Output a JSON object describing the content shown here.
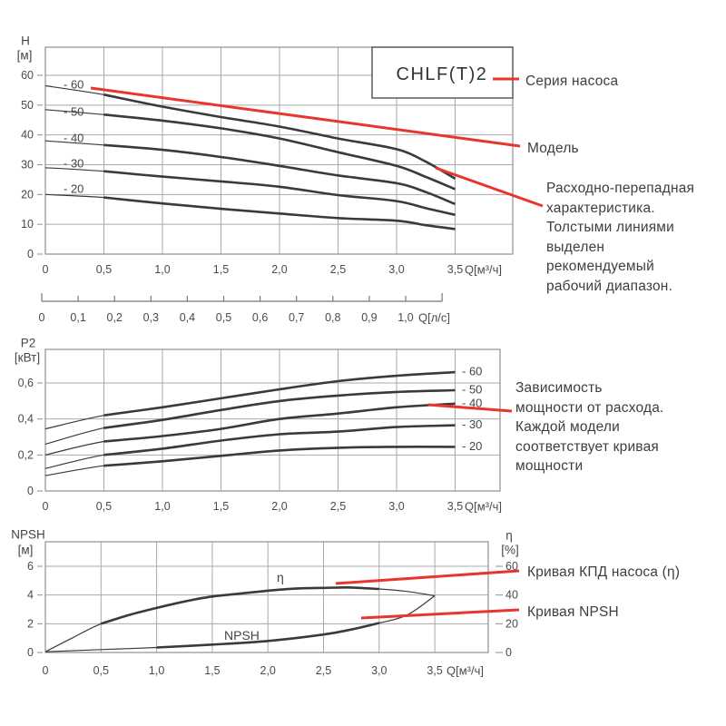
{
  "title_box": {
    "label": "CHLF(T)2"
  },
  "annotations": {
    "series": "Серия насоса",
    "model": "Модель",
    "flow_head": "Расходно-перепадная\nхарактеристика.\nТолстыми линиями\nвыделен\nрекомендуемый\nрабочий диапазон.",
    "power": "Зависимость\nмощности от расхода.\nКаждой модели\nсоответствует кривая\nмощности",
    "efficiency": "Кривая КПД насоса (η)",
    "npsh": "Кривая NPSH"
  },
  "colors": {
    "accent_red": "#e8352e",
    "curve": "#3a3a3a",
    "grid": "#a9a9a9",
    "frame": "#8f8f8f",
    "text": "#3e3e3e"
  },
  "chart_data": [
    {
      "id": "head_flow",
      "type": "line",
      "title": "Расходно-перепадная характеристика CHLF(T)2",
      "ylabel": "H",
      "ylabel_unit": "[м]",
      "xlabel": "Q[м³/ч]",
      "xlim": [
        0,
        4.0
      ],
      "ylim": [
        0,
        69.5
      ],
      "grid": true,
      "xtick_values": [
        0,
        0.5,
        1.0,
        1.5,
        2.0,
        2.5,
        3.0,
        3.5
      ],
      "xtick_labels": [
        "0",
        "0,5",
        "1,0",
        "1,5",
        "2,0",
        "2,5",
        "3,0",
        "3,5"
      ],
      "ytick_values": [
        0,
        10,
        20,
        30,
        40,
        50,
        60
      ],
      "ytick_labels": [
        "0",
        "10",
        "20",
        "30",
        "40",
        "50",
        "60"
      ],
      "x": [
        0,
        0.5,
        1.0,
        1.5,
        2.0,
        2.5,
        3.0,
        3.25,
        3.5
      ],
      "recommended_range": [
        0.5,
        3.5
      ],
      "series": [
        {
          "name": "-60",
          "label": "- 60",
          "values": [
            56.5,
            53.5,
            49.5,
            46.0,
            42.8,
            38.8,
            35.2,
            31.0,
            25.3
          ]
        },
        {
          "name": "-50",
          "label": "- 50",
          "values": [
            48.5,
            46.8,
            44.8,
            42.2,
            38.8,
            34.2,
            29.6,
            25.9,
            21.8
          ]
        },
        {
          "name": "-40",
          "label": "- 40",
          "values": [
            38.0,
            36.6,
            35.0,
            32.6,
            29.6,
            26.4,
            23.8,
            20.8,
            16.8
          ]
        },
        {
          "name": "-30",
          "label": "- 30",
          "values": [
            29.0,
            27.8,
            26.0,
            24.4,
            22.6,
            19.8,
            17.8,
            15.4,
            13.2
          ]
        },
        {
          "name": "-20",
          "label": "- 20",
          "values": [
            20.0,
            19.0,
            17.0,
            15.2,
            13.6,
            12.1,
            11.2,
            9.7,
            8.4
          ]
        }
      ]
    },
    {
      "id": "flow_ruler_ls",
      "type": "axis",
      "xlabel": "Q[л/с]",
      "xtick_labels": [
        "0",
        "0,1",
        "0,2",
        "0,3",
        "0,4",
        "0,5",
        "0,6",
        "0,7",
        "0,8",
        "0,9",
        "1,0"
      ]
    },
    {
      "id": "power",
      "type": "line",
      "title": "Зависимость мощности от расхода",
      "ylabel": "P2",
      "ylabel_unit": "[кВт]",
      "xlabel": "Q[м³/ч]",
      "xlim": [
        0,
        3.9
      ],
      "ylim": [
        0,
        0.79
      ],
      "grid": true,
      "xtick_values": [
        0,
        0.5,
        1.0,
        1.5,
        2.0,
        2.5,
        3.0,
        3.5
      ],
      "xtick_labels": [
        "0",
        "0,5",
        "1,0",
        "1,5",
        "2,0",
        "2,5",
        "3,0",
        "3,5"
      ],
      "ytick_values": [
        0,
        0.2,
        0.4,
        0.6
      ],
      "ytick_labels": [
        "0",
        "0,2",
        "0,4",
        "0,6"
      ],
      "x": [
        0,
        0.5,
        1.0,
        1.5,
        2.0,
        2.5,
        3.0,
        3.5
      ],
      "recommended_range": [
        0.5,
        3.5
      ],
      "series": [
        {
          "name": "-60",
          "label": "- 60",
          "values": [
            0.345,
            0.42,
            0.465,
            0.515,
            0.565,
            0.61,
            0.64,
            0.66
          ]
        },
        {
          "name": "-50",
          "label": "- 50",
          "values": [
            0.26,
            0.35,
            0.395,
            0.45,
            0.5,
            0.53,
            0.55,
            0.56
          ]
        },
        {
          "name": "-40",
          "label": "- 40",
          "values": [
            0.2,
            0.275,
            0.305,
            0.345,
            0.4,
            0.43,
            0.465,
            0.485
          ]
        },
        {
          "name": "-30",
          "label": "- 30",
          "values": [
            0.125,
            0.2,
            0.235,
            0.28,
            0.315,
            0.33,
            0.355,
            0.365
          ]
        },
        {
          "name": "-20",
          "label": "- 20",
          "values": [
            0.085,
            0.14,
            0.165,
            0.195,
            0.225,
            0.24,
            0.245,
            0.245
          ]
        }
      ]
    },
    {
      "id": "npsh_efficiency",
      "type": "line",
      "title": "Кривая КПД насоса (η) и кривая NPSH",
      "ylabel": "NPSH",
      "ylabel_unit": "[м]",
      "y2label": "η",
      "y2label_unit": "[%]",
      "xlabel": "Q[м³/ч]",
      "xlim": [
        0,
        4.0
      ],
      "ylim": [
        0,
        7.7
      ],
      "y2lim": [
        0,
        77
      ],
      "grid": true,
      "xtick_values": [
        0,
        0.5,
        1.0,
        1.5,
        2.0,
        2.5,
        3.0,
        3.5
      ],
      "xtick_labels": [
        "0",
        "0,5",
        "1,0",
        "1,5",
        "2,0",
        "2,5",
        "3,0",
        "3,5"
      ],
      "ytick_values": [
        0,
        2,
        4,
        6
      ],
      "ytick_labels": [
        "0",
        "2",
        "4",
        "6"
      ],
      "y2tick_values": [
        0,
        20,
        40,
        60
      ],
      "y2tick_labels": [
        "0",
        "20",
        "40",
        "60"
      ],
      "series": [
        {
          "name": "eta",
          "label": "η",
          "axis": "right",
          "recommended_range": [
            0.5,
            3.0
          ],
          "x": [
            0,
            0.25,
            0.5,
            0.75,
            1.0,
            1.25,
            1.5,
            1.75,
            2.0,
            2.25,
            2.5,
            2.75,
            3.0,
            3.25,
            3.5
          ],
          "values": [
            0.5,
            10.5,
            20,
            26,
            31,
            35.5,
            39,
            41,
            43,
            44.5,
            45,
            45.2,
            44.2,
            42.5,
            39.5
          ]
        },
        {
          "name": "NPSH",
          "label": "NPSH",
          "axis": "left",
          "recommended_range": [
            1.0,
            3.0
          ],
          "x": [
            0,
            0.5,
            1.0,
            1.5,
            2.0,
            2.5,
            2.75,
            3.0,
            3.25,
            3.5
          ],
          "values": [
            0.05,
            0.2,
            0.35,
            0.55,
            0.8,
            1.25,
            1.6,
            2.05,
            2.6,
            3.95
          ]
        }
      ]
    }
  ]
}
